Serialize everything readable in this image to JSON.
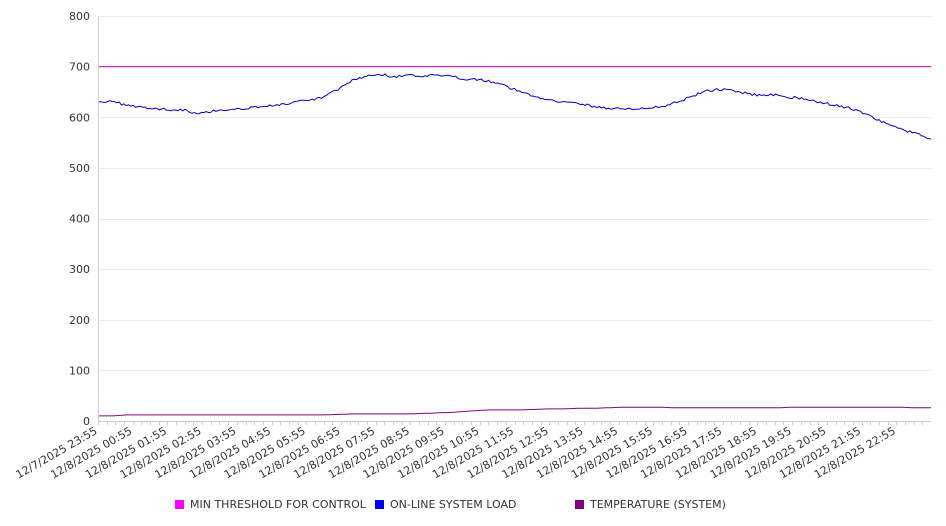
{
  "chart_data": {
    "type": "line",
    "title": "",
    "xlabel": "",
    "ylabel": "",
    "ylim": [
      0,
      800
    ],
    "yticks": [
      0,
      100,
      200,
      300,
      400,
      500,
      600,
      700,
      800
    ],
    "x_tick_labels": [
      "12/7/2025 23:55",
      "12/8/2025 00:55",
      "12/8/2025 01:55",
      "12/8/2025 02:55",
      "12/8/2025 03:55",
      "12/8/2025 04:55",
      "12/8/2025 05:55",
      "12/8/2025 06:55",
      "12/8/2025 07:55",
      "12/8/2025 08:55",
      "12/8/2025 09:55",
      "12/8/2025 10:55",
      "12/8/2025 11:55",
      "12/8/2025 12:55",
      "12/8/2025 13:55",
      "12/8/2025 14:55",
      "12/8/2025 15:55",
      "12/8/2025 16:55",
      "12/8/2025 17:55",
      "12/8/2025 18:55",
      "12/8/2025 19:55",
      "12/8/2025 20:55",
      "12/8/2025 21:55",
      "12/8/2025 22:55"
    ],
    "grid": "horizontal",
    "legend_position": "bottom",
    "series": [
      {
        "name": "MIN THRESHOLD FOR CONTROL",
        "color": "#cc00cc",
        "legend_color": "#ff00ff",
        "values": [
          700,
          700,
          700,
          700,
          700,
          700,
          700,
          700,
          700,
          700,
          700,
          700,
          700,
          700,
          700,
          700,
          700,
          700,
          700,
          700,
          700,
          700,
          700,
          700,
          700,
          700,
          700,
          700,
          700,
          700,
          700,
          700,
          700,
          700,
          700,
          700,
          700,
          700,
          700,
          700,
          700,
          700,
          700,
          700,
          700,
          700,
          700,
          700,
          700
        ]
      },
      {
        "name": "ON-LINE SYSTEM LOAD",
        "color": "#0000cc",
        "legend_color": "#0000ff",
        "values": [
          632,
          630,
          625,
          620,
          617,
          615,
          615,
          608,
          612,
          615,
          616,
          620,
          622,
          625,
          630,
          633,
          640,
          655,
          672,
          682,
          685,
          680,
          683,
          680,
          683,
          680,
          676,
          675,
          670,
          660,
          650,
          640,
          635,
          630,
          627,
          622,
          618,
          617,
          616,
          618,
          622,
          630,
          640,
          652,
          655,
          652,
          647,
          643,
          645,
          640,
          636,
          630,
          625,
          620,
          610,
          598,
          585,
          575,
          567,
          557
        ]
      },
      {
        "name": "TEMPERATURE (SYSTEM)",
        "color": "#800080",
        "legend_color": "#800080",
        "values": [
          10,
          10,
          12,
          12,
          12,
          12,
          12,
          12,
          12,
          12,
          12,
          12,
          12,
          12,
          12,
          12,
          12,
          13,
          14,
          14,
          14,
          14,
          14,
          15,
          16,
          17,
          19,
          21,
          22,
          22,
          22,
          23,
          24,
          24,
          25,
          25,
          26,
          27,
          27,
          27,
          27,
          26,
          26,
          26,
          26,
          26,
          26,
          26,
          26,
          27,
          27,
          27,
          27,
          27,
          27,
          27,
          27,
          27,
          26,
          26
        ]
      }
    ]
  }
}
